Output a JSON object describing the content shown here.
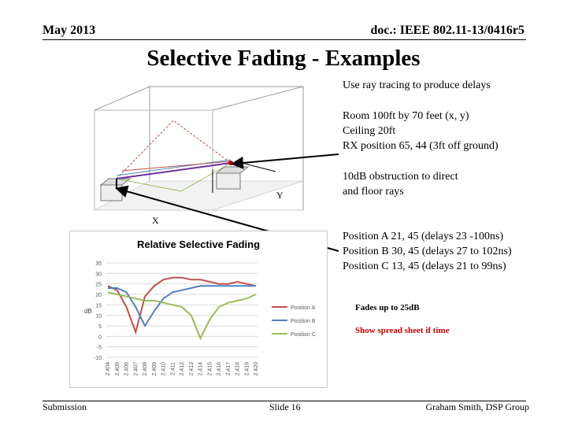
{
  "header": {
    "date": "May 2013",
    "doc_id": "doc.: IEEE 802.11-13/0416r5"
  },
  "slide_title": "Selective Fading - Examples",
  "notes": {
    "ray_tracing": "Use ray tracing to produce delays",
    "room": [
      "Room 100ft by 70 feet  (x, y)",
      "Ceiling 20ft",
      "RX position  65, 44 (3ft off ground)"
    ],
    "obstruction": [
      "10dB obstruction to direct",
      "and floor rays"
    ],
    "positions": [
      "Position A  21, 45  (delays 23 -100ns)",
      "Position B  30, 45 (delays 27 to 102ns)",
      "Position C 13, 45 (delays 21 to 99ns)"
    ],
    "fades": "Fades up to 25dB",
    "show_sheet": "Show spread sheet  if  time"
  },
  "diagram": {
    "y_label": "Y",
    "x_label": "X"
  },
  "footer": {
    "left": "Submission",
    "center": "Slide 16",
    "right": "Graham Smith, DSP Group"
  },
  "colors": {
    "pos_a": "#c0504d",
    "pos_b": "#4f81bd",
    "pos_c": "#9bbb59"
  },
  "chart_data": {
    "type": "line",
    "title": "Relative Selective Fading",
    "ylabel": "dB",
    "xlabel": "",
    "ylim": [
      -10,
      35
    ],
    "yticks": [
      -10,
      -5,
      0,
      5,
      10,
      15,
      20,
      25,
      30,
      35
    ],
    "legend_position": "right",
    "grid": true,
    "categories": [
      "2.404",
      "2.405",
      "2.406",
      "2.407",
      "2.408",
      "2.409",
      "2.410",
      "2.411",
      "2.412",
      "2.413",
      "2.414",
      "2.415",
      "2.416",
      "2.417",
      "2.418",
      "2.419",
      "2.420"
    ],
    "series": [
      {
        "name": "Position A",
        "values": [
          24,
          22,
          14,
          2,
          19,
          24,
          27,
          28,
          28,
          27,
          27,
          26,
          25,
          25,
          26,
          25,
          24
        ]
      },
      {
        "name": "Position B",
        "values": [
          23,
          23,
          21,
          14,
          5,
          12,
          18,
          21,
          22,
          23,
          24,
          24,
          24,
          24,
          24,
          24,
          24
        ]
      },
      {
        "name": "Position C",
        "values": [
          21,
          20,
          19,
          18,
          17,
          17,
          16,
          15,
          14,
          10,
          -1,
          8,
          14,
          16,
          17,
          18,
          20
        ]
      }
    ]
  }
}
